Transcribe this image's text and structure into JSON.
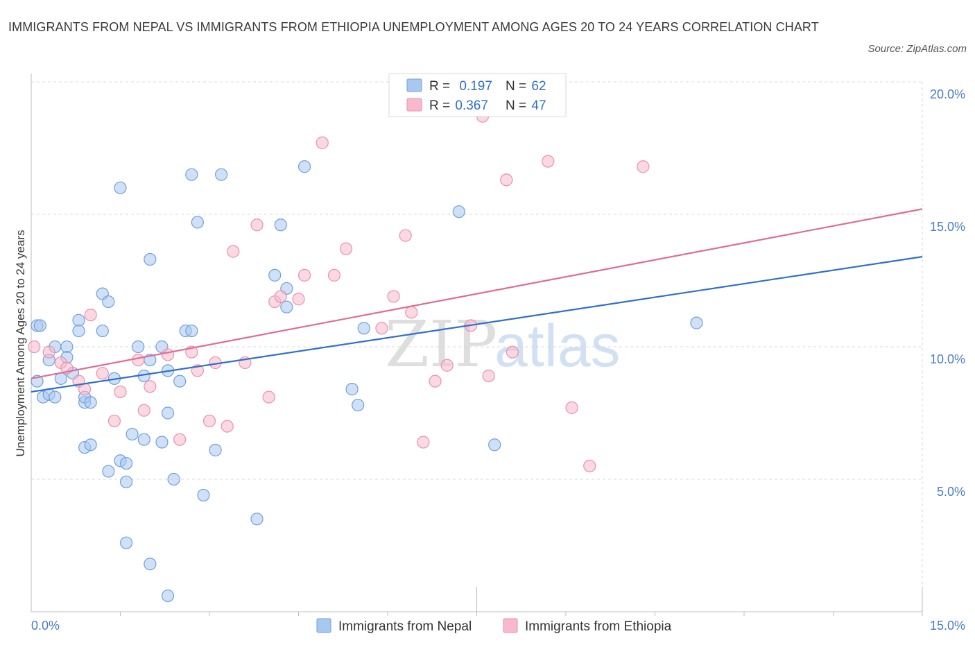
{
  "title": "IMMIGRANTS FROM NEPAL VS IMMIGRANTS FROM ETHIOPIA UNEMPLOYMENT AMONG AGES 20 TO 24 YEARS CORRELATION CHART",
  "source": "Source: ZipAtlas.com",
  "watermark": {
    "zip": "ZIP",
    "atlas": "atlas"
  },
  "colors": {
    "nepal_fill": "#a9c8f0",
    "nepal_stroke": "#6f9fde",
    "nepal_line": "#2f6fcc",
    "ethiopia_fill": "#f7b9cb",
    "ethiopia_stroke": "#ec8fab",
    "ethiopia_line": "#e06b94",
    "axis_text": "#4a7cc7",
    "grid": "#d9d9d9"
  },
  "legend": {
    "rows": [
      {
        "r_label": "R = ",
        "r_value": "0.197",
        "n_label": "N = ",
        "n_value": "62"
      },
      {
        "r_label": "R = ",
        "r_value": "0.367",
        "n_label": "N = ",
        "n_value": "47"
      }
    ]
  },
  "chart_data": {
    "type": "scatter",
    "ylabel": "Unemployment Among Ages 20 to 24 years",
    "xlim": [
      0,
      15
    ],
    "ylim": [
      0,
      20
    ],
    "x_tick_labels": [
      {
        "value": 0,
        "label": "0.0%"
      },
      {
        "value": 15,
        "label": "15.0%"
      }
    ],
    "y_tick_labels": [
      {
        "value": 5,
        "label": "5.0%"
      },
      {
        "value": 10,
        "label": "10.0%"
      },
      {
        "value": 15,
        "label": "15.0%"
      },
      {
        "value": 20,
        "label": "20.0%"
      }
    ],
    "grid": true,
    "legend_position": "bottom-center",
    "series": [
      {
        "name": "Immigrants from Nepal",
        "trend": {
          "x": [
            0,
            15
          ],
          "y": [
            8.3,
            13.4
          ]
        },
        "points": [
          [
            0.1,
            10.8
          ],
          [
            0.1,
            8.7
          ],
          [
            0.2,
            8.1
          ],
          [
            0.3,
            8.2
          ],
          [
            0.3,
            9.5
          ],
          [
            0.4,
            10.0
          ],
          [
            0.4,
            8.1
          ],
          [
            0.5,
            8.8
          ],
          [
            0.6,
            10.0
          ],
          [
            0.6,
            9.6
          ],
          [
            0.7,
            9.0
          ],
          [
            0.8,
            11.0
          ],
          [
            0.8,
            10.6
          ],
          [
            0.9,
            7.9
          ],
          [
            0.9,
            8.1
          ],
          [
            0.9,
            6.2
          ],
          [
            1.0,
            7.9
          ],
          [
            1.0,
            6.3
          ],
          [
            1.2,
            10.6
          ],
          [
            1.2,
            12.0
          ],
          [
            1.3,
            11.7
          ],
          [
            1.3,
            5.3
          ],
          [
            1.4,
            8.8
          ],
          [
            1.5,
            16.0
          ],
          [
            1.5,
            5.7
          ],
          [
            1.6,
            5.6
          ],
          [
            1.6,
            2.6
          ],
          [
            1.6,
            4.9
          ],
          [
            1.7,
            6.7
          ],
          [
            1.8,
            10.0
          ],
          [
            1.9,
            8.9
          ],
          [
            1.9,
            6.5
          ],
          [
            2.0,
            13.3
          ],
          [
            2.0,
            1.8
          ],
          [
            2.0,
            9.5
          ],
          [
            2.2,
            6.4
          ],
          [
            2.2,
            10.0
          ],
          [
            2.3,
            7.5
          ],
          [
            2.3,
            0.6
          ],
          [
            2.3,
            9.1
          ],
          [
            2.4,
            5.0
          ],
          [
            2.5,
            8.7
          ],
          [
            2.6,
            10.6
          ],
          [
            2.7,
            10.6
          ],
          [
            2.7,
            16.5
          ],
          [
            2.8,
            14.7
          ],
          [
            2.9,
            4.4
          ],
          [
            3.1,
            6.1
          ],
          [
            3.2,
            16.5
          ],
          [
            3.8,
            3.5
          ],
          [
            4.1,
            12.7
          ],
          [
            4.2,
            14.6
          ],
          [
            4.3,
            12.2
          ],
          [
            4.3,
            11.5
          ],
          [
            4.6,
            16.8
          ],
          [
            5.4,
            8.4
          ],
          [
            5.5,
            7.8
          ],
          [
            5.6,
            10.7
          ],
          [
            7.2,
            15.1
          ],
          [
            7.8,
            6.3
          ],
          [
            11.2,
            10.9
          ],
          [
            0.15,
            10.8
          ]
        ]
      },
      {
        "name": "Immigrants from Ethiopia",
        "trend": {
          "x": [
            0,
            15
          ],
          "y": [
            8.8,
            15.2
          ]
        },
        "points": [
          [
            0.05,
            10.0
          ],
          [
            0.3,
            9.8
          ],
          [
            0.5,
            9.4
          ],
          [
            0.6,
            9.2
          ],
          [
            0.8,
            8.7
          ],
          [
            0.9,
            8.4
          ],
          [
            1.0,
            11.2
          ],
          [
            1.2,
            9.0
          ],
          [
            1.4,
            7.2
          ],
          [
            1.5,
            8.3
          ],
          [
            1.8,
            9.5
          ],
          [
            1.9,
            7.6
          ],
          [
            2.0,
            8.5
          ],
          [
            2.3,
            9.7
          ],
          [
            2.5,
            6.5
          ],
          [
            2.7,
            9.8
          ],
          [
            2.8,
            9.1
          ],
          [
            3.0,
            7.2
          ],
          [
            3.1,
            9.4
          ],
          [
            3.3,
            7.0
          ],
          [
            3.4,
            13.6
          ],
          [
            3.6,
            9.4
          ],
          [
            3.8,
            14.6
          ],
          [
            4.0,
            8.1
          ],
          [
            4.1,
            11.7
          ],
          [
            4.2,
            11.9
          ],
          [
            4.5,
            11.8
          ],
          [
            4.6,
            12.7
          ],
          [
            4.9,
            17.7
          ],
          [
            5.1,
            12.7
          ],
          [
            5.3,
            13.7
          ],
          [
            5.9,
            10.7
          ],
          [
            6.1,
            11.9
          ],
          [
            6.3,
            14.2
          ],
          [
            6.4,
            11.3
          ],
          [
            6.6,
            6.4
          ],
          [
            6.8,
            8.7
          ],
          [
            7.0,
            9.3
          ],
          [
            7.4,
            10.8
          ],
          [
            7.6,
            18.7
          ],
          [
            7.7,
            8.9
          ],
          [
            8.0,
            16.3
          ],
          [
            8.1,
            9.8
          ],
          [
            8.7,
            17.0
          ],
          [
            9.1,
            7.7
          ],
          [
            9.4,
            5.5
          ],
          [
            10.3,
            16.8
          ]
        ]
      }
    ]
  }
}
